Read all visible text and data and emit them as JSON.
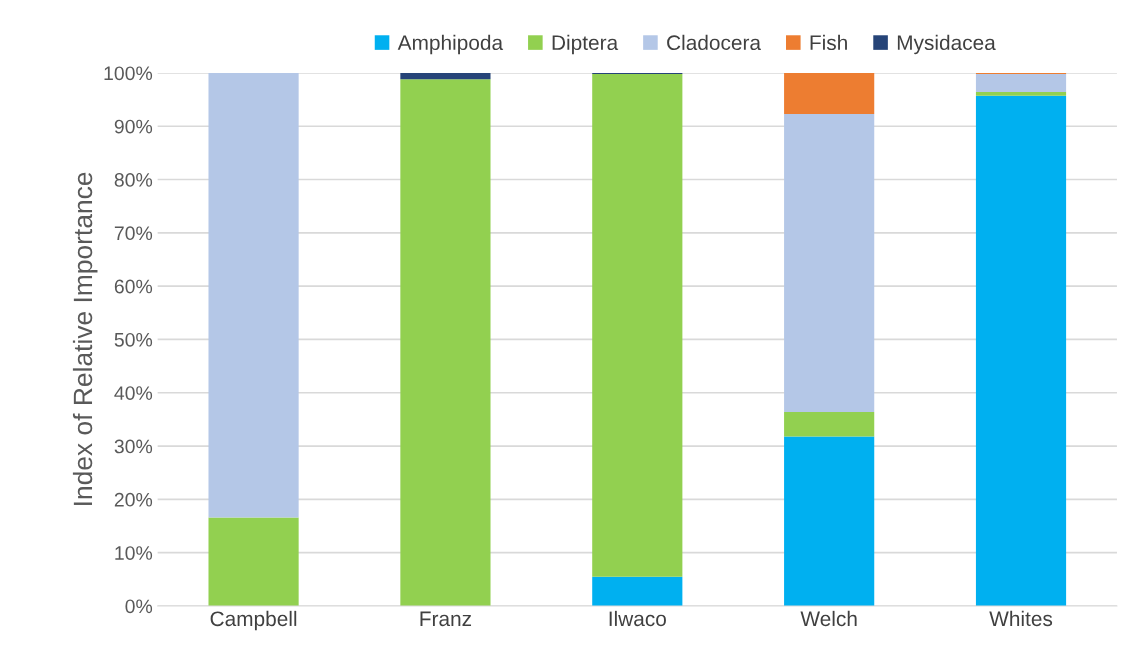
{
  "chart_data": {
    "type": "bar",
    "stacked": true,
    "ylabel": "Index of Relative Importance",
    "categories": [
      "Campbell",
      "Franz",
      "Ilwaco",
      "Welch",
      "Whites"
    ],
    "series": [
      {
        "name": "Amphipoda",
        "color": "#00b0f0",
        "values": [
          null,
          null,
          5.5,
          31.8,
          95.7
        ]
      },
      {
        "name": "Diptera",
        "color": "#92d050",
        "values": [
          16.6,
          98.8,
          94.3,
          4.6,
          0.7
        ]
      },
      {
        "name": "Cladocera",
        "color": "#b4c7e7",
        "values": [
          83.4,
          null,
          null,
          55.9,
          3.4
        ]
      },
      {
        "name": "Fish",
        "color": "#ed7d31",
        "values": [
          null,
          null,
          null,
          7.7,
          0.2
        ]
      },
      {
        "name": "Mysidacea",
        "color": "#264478",
        "values": [
          null,
          1.2,
          0.2,
          null,
          null
        ]
      }
    ],
    "ylim": [
      0,
      100
    ],
    "yticks": [
      {
        "value": 0,
        "label": "0%"
      },
      {
        "value": 10,
        "label": "10%"
      },
      {
        "value": 20,
        "label": "20%"
      },
      {
        "value": 30,
        "label": "30%"
      },
      {
        "value": 40,
        "label": "40%"
      },
      {
        "value": 50,
        "label": "50%"
      },
      {
        "value": 60,
        "label": "60%"
      },
      {
        "value": 70,
        "label": "70%"
      },
      {
        "value": 80,
        "label": "80%"
      },
      {
        "value": 90,
        "label": "90%"
      },
      {
        "value": 100,
        "label": "100%"
      }
    ],
    "grid": "y",
    "legend": "top"
  }
}
